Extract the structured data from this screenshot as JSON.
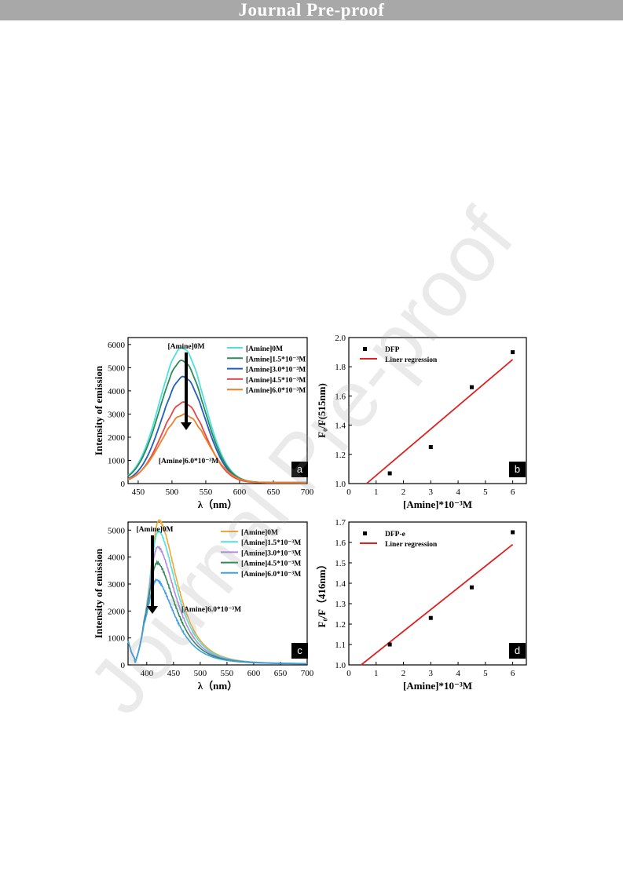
{
  "header": {
    "banner_text": "Journal Pre-proof"
  },
  "watermark": {
    "text": "Journal Pre-proof"
  },
  "colors": {
    "cyan": "#4ee0e0",
    "green": "#2e8b57",
    "blue": "#1f5fbf",
    "red": "#e8464a",
    "orange": "#f07f23",
    "gold": "#f0a830",
    "lilac": "#b08ae0",
    "azure": "#3ca0e8",
    "reg_red": "#e02020"
  },
  "chart_data": [
    {
      "panel": "a",
      "type": "line",
      "xlabel": "λ（nm）",
      "ylabel": "Intensity of emission",
      "xlim": [
        435,
        700
      ],
      "ylim": [
        0,
        6300
      ],
      "xticks": [
        "450",
        "500",
        "550",
        "600",
        "650",
        "700"
      ],
      "yticks": [
        "0",
        "1000",
        "2000",
        "3000",
        "4000",
        "5000",
        "6000"
      ],
      "legend_position": "top-right",
      "series": [
        {
          "name": "[Amine]0M",
          "color": "#4ee0e0",
          "peak_x": 515,
          "peak_y": 5850,
          "sigma": 33,
          "base": 40
        },
        {
          "name": "[Amine]1.5*10⁻³M",
          "color": "#2e8b57",
          "peak_x": 515,
          "peak_y": 5300,
          "sigma": 33,
          "base": 40
        },
        {
          "name": "[Amine]3.0*10⁻³M",
          "color": "#1f5fbf",
          "peak_x": 517,
          "peak_y": 4600,
          "sigma": 32,
          "base": 40
        },
        {
          "name": "[Amine]4.5*10⁻³M",
          "color": "#e8464a",
          "peak_x": 517,
          "peak_y": 3500,
          "sigma": 32,
          "base": 40
        },
        {
          "name": "[Amine]6.0*10⁻³M",
          "color": "#f07f23",
          "peak_x": 518,
          "peak_y": 2980,
          "sigma": 34,
          "base": 40
        }
      ],
      "annotations": [
        "[Amine]0M",
        "[Amine]6.0*10⁻³M"
      ]
    },
    {
      "panel": "b",
      "type": "scatter",
      "xlabel": "[Amine]*10⁻³M",
      "ylabel": "F₀/F(515nm)",
      "xlim": [
        0,
        6.5
      ],
      "ylim": [
        1.0,
        2.0
      ],
      "xticks": [
        "0",
        "1",
        "2",
        "3",
        "4",
        "5",
        "6"
      ],
      "yticks": [
        "1.0",
        "1.2",
        "1.4",
        "1.6",
        "1.8",
        "2.0"
      ],
      "legend_position": "top-left",
      "points": [
        {
          "x": 1.5,
          "y": 1.07
        },
        {
          "x": 3.0,
          "y": 1.25
        },
        {
          "x": 4.5,
          "y": 1.66
        },
        {
          "x": 6.0,
          "y": 1.9
        }
      ],
      "regression": {
        "x": [
          0.65,
          6.0
        ],
        "y": [
          1.0,
          1.85
        ]
      },
      "legend": [
        "DFP",
        "Liner regression"
      ]
    },
    {
      "panel": "c",
      "type": "line",
      "xlabel": "λ（nm）",
      "ylabel": "Intensity of emission",
      "xlim": [
        365,
        700
      ],
      "ylim": [
        0,
        5300
      ],
      "xticks": [
        "400",
        "450",
        "500",
        "550",
        "600",
        "650",
        "700"
      ],
      "yticks": [
        "0",
        "1000",
        "2000",
        "3000",
        "4000",
        "5000"
      ],
      "legend_position": "top-right",
      "series": [
        {
          "name": "[Amine]0M",
          "color": "#f0a830",
          "peak_x": 423,
          "peak_y": 4850
        },
        {
          "name": "[Amine]1.5*10⁻³M",
          "color": "#4ee0e0",
          "peak_x": 422,
          "peak_y": 4450
        },
        {
          "name": "[Amine]3.0*10⁻³M",
          "color": "#b08ae0",
          "peak_x": 421,
          "peak_y": 3850
        },
        {
          "name": "[Amine]4.5*10⁻³M",
          "color": "#2e8b57",
          "peak_x": 420,
          "peak_y": 3250
        },
        {
          "name": "[Amine]6.0*10⁻³M",
          "color": "#3ca0e8",
          "peak_x": 419,
          "peak_y": 2600
        }
      ],
      "annotations": [
        "[Amine]0M",
        "[Amine]6.0*10⁻³M"
      ]
    },
    {
      "panel": "d",
      "type": "scatter",
      "xlabel": "[Amine]*10⁻³M",
      "ylabel": "F₀/F（416nm）",
      "xlim": [
        0,
        6.5
      ],
      "ylim": [
        1.0,
        1.7
      ],
      "xticks": [
        "0",
        "1",
        "2",
        "3",
        "4",
        "5",
        "6"
      ],
      "yticks": [
        "1.0",
        "1.1",
        "1.2",
        "1.3",
        "1.4",
        "1.5",
        "1.6",
        "1.7"
      ],
      "legend_position": "top-left",
      "points": [
        {
          "x": 1.5,
          "y": 1.1
        },
        {
          "x": 3.0,
          "y": 1.23
        },
        {
          "x": 4.5,
          "y": 1.38
        },
        {
          "x": 6.0,
          "y": 1.65
        }
      ],
      "regression": {
        "x": [
          0.45,
          6.0
        ],
        "y": [
          1.0,
          1.59
        ]
      },
      "legend": [
        "DFP-e",
        "Liner regression"
      ]
    }
  ]
}
